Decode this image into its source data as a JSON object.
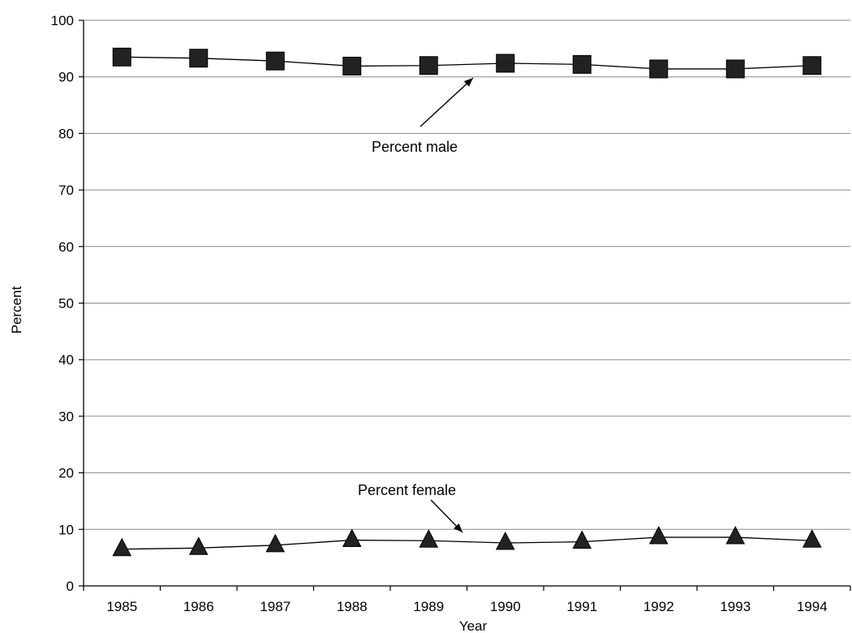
{
  "chart_data": {
    "type": "line",
    "title": "",
    "xlabel": "Year",
    "ylabel": "Percent",
    "categories": [
      "1985",
      "1986",
      "1987",
      "1988",
      "1989",
      "1990",
      "1991",
      "1992",
      "1993",
      "1994"
    ],
    "ylim": [
      0,
      100
    ],
    "yticks": [
      0,
      10,
      20,
      30,
      40,
      50,
      60,
      70,
      80,
      90,
      100
    ],
    "grid": true,
    "series": [
      {
        "name": "Percent male",
        "marker": "square",
        "values": [
          93.5,
          93.3,
          92.8,
          91.9,
          92.0,
          92.4,
          92.2,
          91.4,
          91.4,
          92.0
        ]
      },
      {
        "name": "Percent female",
        "marker": "triangle",
        "values": [
          6.5,
          6.7,
          7.2,
          8.1,
          8.0,
          7.6,
          7.8,
          8.6,
          8.6,
          8.0
        ]
      }
    ],
    "colors": {
      "line": "#000000",
      "marker": "#222222",
      "grid": "#8a8a8a"
    }
  }
}
